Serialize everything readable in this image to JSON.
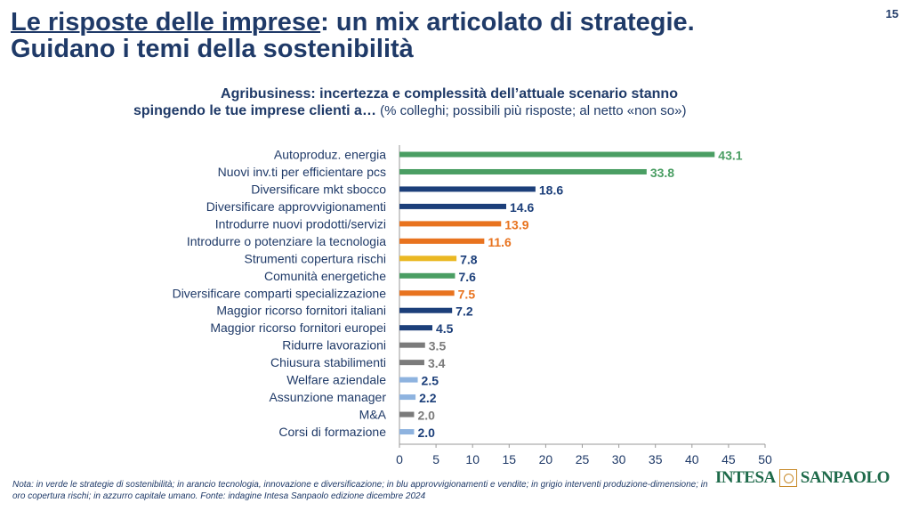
{
  "page_number": "15",
  "title": {
    "part1": "Le risposte delle imprese",
    "part2": ": un mix articolato di strategie.",
    "line2": "Guidano i temi della sostenibilità"
  },
  "subtitle": {
    "line1": "Agribusiness: incertezza e complessità dell’attuale scenario stanno",
    "line2_bold": "spingendo le tue imprese clienti a…",
    "line2_note": " (% colleghi; possibili più risposte; al netto «non so»)"
  },
  "colors": {
    "green": "#4a9e63",
    "blue": "#1c3f7a",
    "orange": "#e8731f",
    "gold": "#eab823",
    "grey": "#7b7b7b",
    "lightblue": "#8eb3df"
  },
  "chart_data": {
    "type": "bar",
    "orientation": "horizontal",
    "categories": [
      "Autoproduz. energia",
      "Nuovi inv.ti per efficientare pcs",
      "Diversificare mkt sbocco",
      "Diversificare approvvigionamenti",
      "Introdurre nuovi prodotti/servizi",
      "Introdurre o potenziare la tecnologia",
      "Strumenti copertura rischi",
      "Comunità energetiche",
      "Diversificare comparti specializzazione",
      "Maggior ricorso fornitori italiani",
      "Maggior ricorso fornitori europei",
      "Ridurre lavorazioni",
      "Chiusura stabilimenti",
      "Welfare aziendale",
      "Assunzione manager",
      "M&A",
      "Corsi di formazione"
    ],
    "values": [
      43.1,
      33.8,
      18.6,
      14.6,
      13.9,
      11.6,
      7.8,
      7.6,
      7.5,
      7.2,
      4.5,
      3.5,
      3.4,
      2.5,
      2.2,
      2.0,
      2.0
    ],
    "value_labels": [
      "43.1",
      "33.8",
      "18.6",
      "14.6",
      "13.9",
      "11.6",
      "7.8",
      "7.6",
      "7.5",
      "7.2",
      "4.5",
      "3.5",
      "3.4",
      "2.5",
      "2.2",
      "2.0",
      "2.0"
    ],
    "bar_colors": [
      "#4a9e63",
      "#4a9e63",
      "#1c3f7a",
      "#1c3f7a",
      "#e8731f",
      "#e8731f",
      "#eab823",
      "#4a9e63",
      "#e8731f",
      "#1c3f7a",
      "#1c3f7a",
      "#7b7b7b",
      "#7b7b7b",
      "#8eb3df",
      "#8eb3df",
      "#7b7b7b",
      "#8eb3df"
    ],
    "label_colors": [
      "#4a9e63",
      "#4a9e63",
      "#1c3f7a",
      "#1c3f7a",
      "#e8731f",
      "#e8731f",
      "#1c3f7a",
      "#1c3f7a",
      "#e8731f",
      "#1c3f7a",
      "#1c3f7a",
      "#7b7b7b",
      "#7b7b7b",
      "#1c3f7a",
      "#1c3f7a",
      "#7b7b7b",
      "#1c3f7a"
    ],
    "xlim": [
      0,
      50
    ],
    "xticks": [
      "0",
      "5",
      "10",
      "15",
      "20",
      "25",
      "30",
      "35",
      "40",
      "45",
      "50"
    ],
    "xlabel": "",
    "ylabel": "",
    "grid": false,
    "legend": "none"
  },
  "note": "Nota: in verde le strategie di sostenibilità; in arancio tecnologia, innovazione e diversificazione; in blu approvvigionamenti e vendite; in grigio interventi produzione-dimensione; in oro copertura rischi; in azzurro capitale umano. Fonte: indagine Intesa Sanpaolo edizione dicembre 2024",
  "logo": {
    "left": "INTESA",
    "right": "SANPAOLO"
  }
}
